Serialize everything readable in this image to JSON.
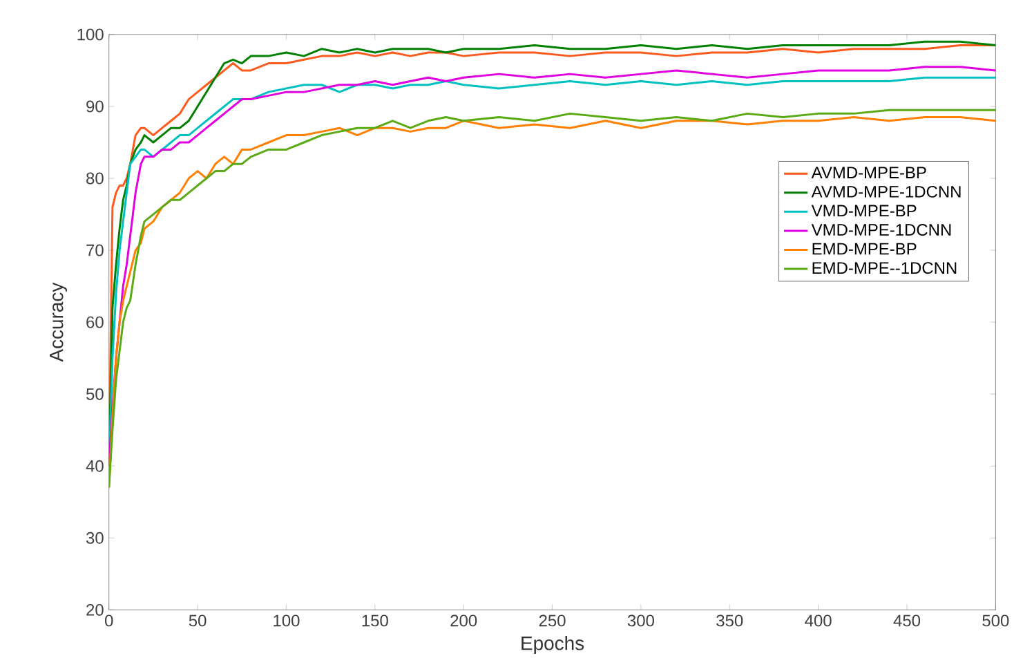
{
  "chart_data": {
    "type": "line",
    "xlabel": "Epochs",
    "ylabel": "Accuracy",
    "x": [
      0,
      2,
      4,
      6,
      8,
      10,
      12,
      15,
      18,
      20,
      25,
      30,
      35,
      40,
      45,
      50,
      55,
      60,
      65,
      70,
      75,
      80,
      90,
      100,
      110,
      120,
      130,
      140,
      150,
      160,
      170,
      180,
      190,
      200,
      220,
      240,
      260,
      280,
      300,
      320,
      340,
      360,
      380,
      400,
      420,
      440,
      460,
      480,
      500
    ],
    "series": [
      {
        "name": "AVMD-MPE-BP",
        "color": "#ff5a1e",
        "values": [
          40,
          76,
          78,
          79,
          79,
          80,
          82,
          86,
          87,
          87,
          86,
          87,
          88,
          89,
          91,
          92,
          93,
          94,
          95,
          96,
          95,
          95,
          96,
          96,
          96.5,
          97,
          97,
          97.5,
          97,
          97.5,
          97,
          97.5,
          97.5,
          97,
          97.5,
          97.5,
          97,
          97.5,
          97.5,
          97,
          97.5,
          97.5,
          98,
          97.5,
          98,
          98,
          98,
          98.5,
          98.5
        ]
      },
      {
        "name": "AVMD-MPE-1DCNN",
        "color": "#008000",
        "values": [
          40,
          62,
          68,
          73,
          77,
          79,
          82,
          84,
          85,
          86,
          85,
          86,
          87,
          87,
          88,
          90,
          92,
          94,
          96,
          96.5,
          96,
          97,
          97,
          97.5,
          97,
          98,
          97.5,
          98,
          97.5,
          98,
          98,
          98,
          97.5,
          98,
          98,
          98.5,
          98,
          98,
          98.5,
          98,
          98.5,
          98,
          98.5,
          98.5,
          98.5,
          98.5,
          99,
          99,
          98.5
        ]
      },
      {
        "name": "VMD-MPE-BP",
        "color": "#00c0c0",
        "values": [
          40,
          55,
          64,
          70,
          74,
          78,
          82,
          83,
          84,
          84,
          83,
          84,
          85,
          86,
          86,
          87,
          88,
          89,
          90,
          91,
          91,
          91,
          92,
          92.5,
          93,
          93,
          92,
          93,
          93,
          92.5,
          93,
          93,
          93.5,
          93,
          92.5,
          93,
          93.5,
          93,
          93.5,
          93,
          93.5,
          93,
          93.5,
          93.5,
          93.5,
          93.5,
          94,
          94,
          94
        ]
      },
      {
        "name": "VMD-MPE-1DCNN",
        "color": "#e000e0",
        "values": [
          40,
          48,
          55,
          60,
          65,
          68,
          72,
          78,
          82,
          83,
          83,
          84,
          84,
          85,
          85,
          86,
          87,
          88,
          89,
          90,
          91,
          91,
          91.5,
          92,
          92,
          92.5,
          93,
          93,
          93.5,
          93,
          93.5,
          94,
          93.5,
          94,
          94.5,
          94,
          94.5,
          94,
          94.5,
          95,
          94.5,
          94,
          94.5,
          95,
          95,
          95,
          95.5,
          95.5,
          95
        ]
      },
      {
        "name": "EMD-MPE-BP",
        "color": "#ff8000",
        "values": [
          37,
          47,
          55,
          60,
          63,
          65,
          67,
          70,
          71,
          73,
          74,
          76,
          77,
          78,
          80,
          81,
          80,
          82,
          83,
          82,
          84,
          84,
          85,
          86,
          86,
          86.5,
          87,
          86,
          87,
          87,
          86.5,
          87,
          87,
          88,
          87,
          87.5,
          87,
          88,
          87,
          88,
          88,
          87.5,
          88,
          88,
          88.5,
          88,
          88.5,
          88.5,
          88
        ]
      },
      {
        "name": "EMD-MPE--1DCNN",
        "color": "#5aaa14",
        "values": [
          37,
          45,
          52,
          56,
          60,
          62,
          63,
          68,
          72,
          74,
          75,
          76,
          77,
          77,
          78,
          79,
          80,
          81,
          81,
          82,
          82,
          83,
          84,
          84,
          85,
          86,
          86.5,
          87,
          87,
          88,
          87,
          88,
          88.5,
          88,
          88.5,
          88,
          89,
          88.5,
          88,
          88.5,
          88,
          89,
          88.5,
          89,
          89,
          89.5,
          89.5,
          89.5,
          89.5
        ]
      }
    ],
    "xlim": [
      0,
      500
    ],
    "ylim": [
      20,
      100
    ],
    "xticks": [
      0,
      50,
      100,
      150,
      200,
      250,
      300,
      350,
      400,
      450,
      500
    ],
    "yticks": [
      20,
      30,
      40,
      50,
      60,
      70,
      80,
      90,
      100
    ],
    "legend": "right",
    "grid": false,
    "marker": "none",
    "line_style": "solid"
  }
}
